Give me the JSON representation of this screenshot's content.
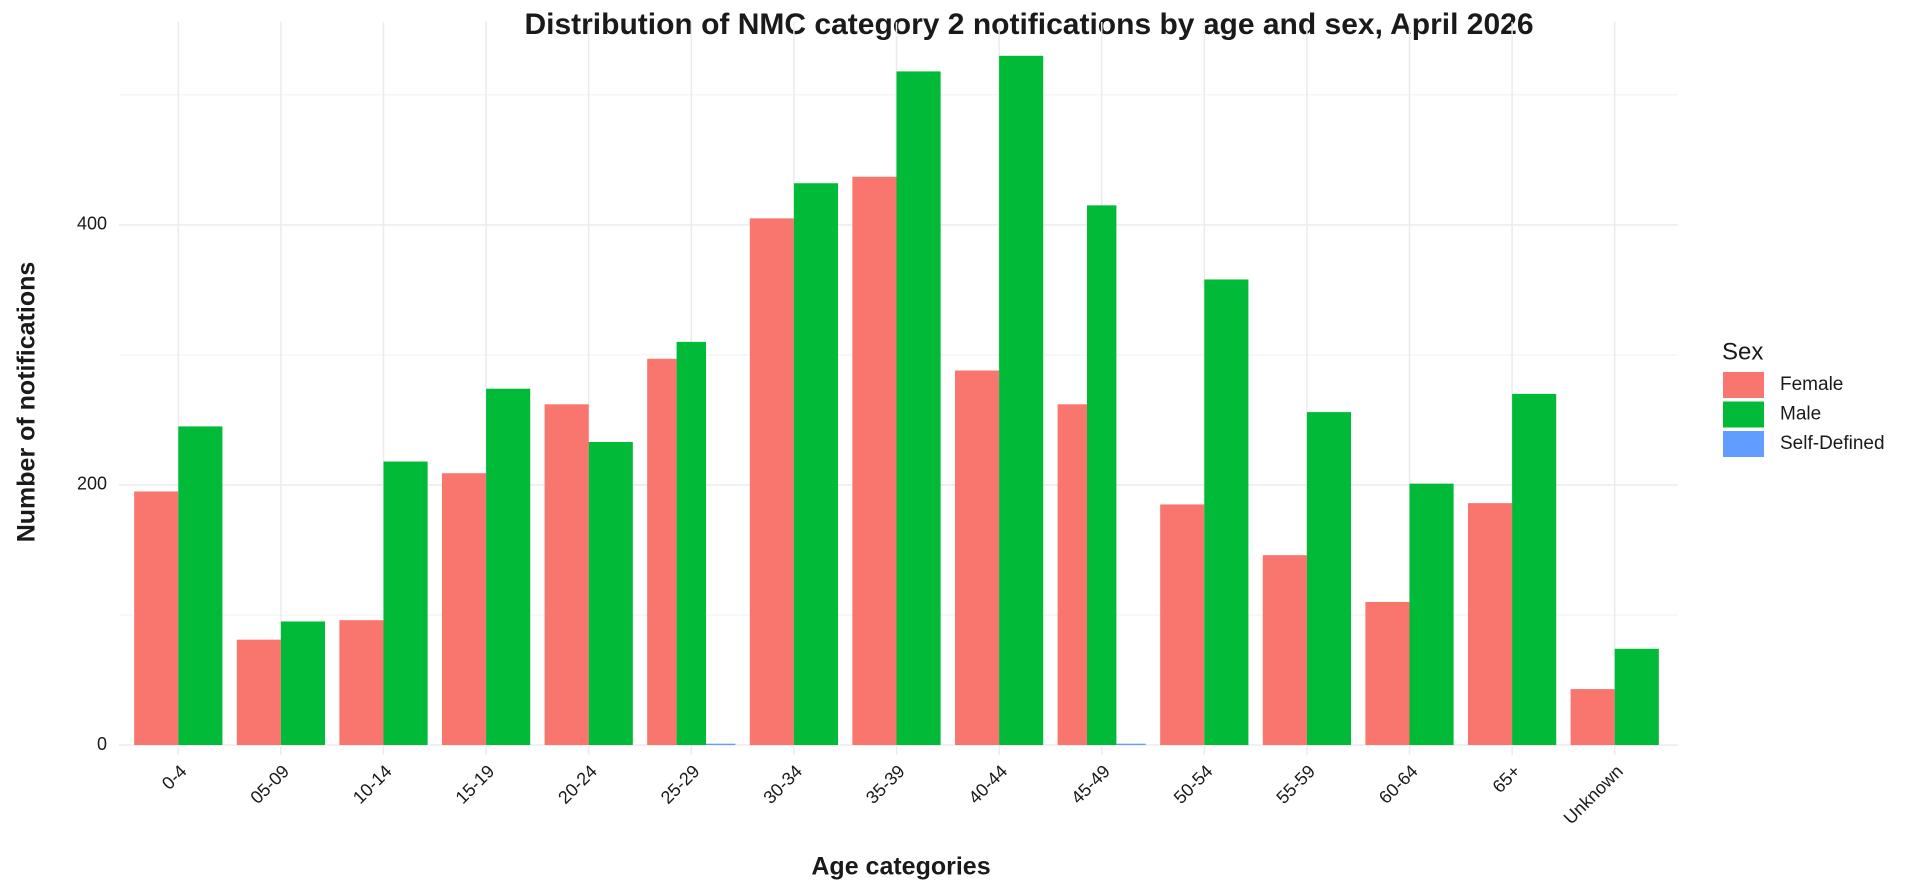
{
  "chart_data": {
    "type": "bar",
    "title": "Distribution of NMC category 2 notifications by age and sex, April 2026",
    "x_label": "Age categories",
    "y_label": "Number of notifications",
    "legend_title": "Sex",
    "categories": [
      "0-4",
      "05-09",
      "10-14",
      "15-19",
      "20-24",
      "25-29",
      "30-34",
      "35-39",
      "40-44",
      "45-49",
      "50-54",
      "55-59",
      "60-64",
      "65+",
      "Unknown"
    ],
    "series": [
      {
        "name": "Female",
        "color": "#F8766D",
        "values": [
          195,
          81,
          96,
          209,
          262,
          297,
          405,
          437,
          288,
          262,
          185,
          146,
          110,
          186,
          43
        ]
      },
      {
        "name": "Male",
        "color": "#00BA38",
        "values": [
          245,
          95,
          218,
          274,
          233,
          310,
          432,
          518,
          530,
          415,
          358,
          256,
          201,
          270,
          74
        ]
      },
      {
        "name": "Self-Defined",
        "color": "#619CFF",
        "values": [
          null,
          null,
          null,
          null,
          null,
          1,
          null,
          null,
          null,
          1,
          null,
          null,
          null,
          null,
          null
        ]
      }
    ],
    "ylim": [
      0,
      556
    ],
    "yticks": [
      0,
      200,
      400
    ],
    "yminorticks": [
      100,
      300,
      500
    ],
    "grid": true,
    "legend_position": "right"
  }
}
